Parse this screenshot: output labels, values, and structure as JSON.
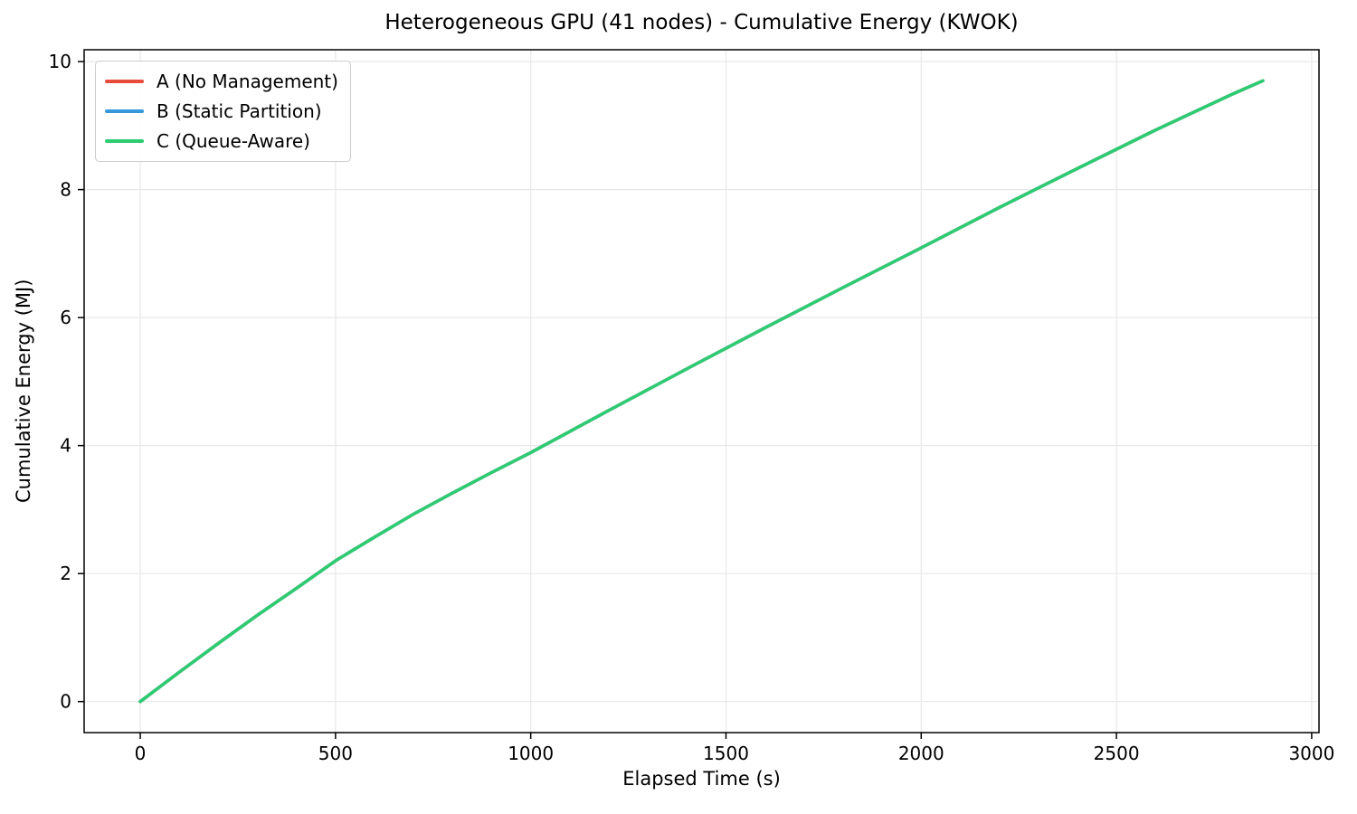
{
  "chart_data": {
    "type": "line",
    "title": "Heterogeneous GPU (41 nodes) - Cumulative Energy (KWOK)",
    "xlabel": "Elapsed Time (s)",
    "ylabel": "Cumulative Energy (MJ)",
    "xlim": [
      -143.75,
      3018.75
    ],
    "ylim": [
      -0.485,
      10.185
    ],
    "xticks": [
      0,
      500,
      1000,
      1500,
      2000,
      2500,
      3000
    ],
    "yticks": [
      0,
      2,
      4,
      6,
      8,
      10
    ],
    "grid": true,
    "legend_position": "upper left",
    "series_overlap": "All three series coincide along the same curve; C (Queue-Aware) is drawn on top so only green is visible",
    "x": [
      0,
      100,
      200,
      300,
      400,
      500,
      600,
      700,
      800,
      900,
      1000,
      1200,
      1400,
      1600,
      1800,
      2000,
      2200,
      2400,
      2600,
      2800,
      2875
    ],
    "series": [
      {
        "name": "A (No Management)",
        "color": "#e74c3c",
        "values": [
          0,
          0.46,
          0.91,
          1.35,
          1.77,
          2.2,
          2.57,
          2.93,
          3.26,
          3.58,
          3.89,
          4.55,
          5.2,
          5.84,
          6.47,
          7.09,
          7.72,
          8.33,
          8.93,
          9.5,
          9.7
        ]
      },
      {
        "name": "B (Static Partition)",
        "color": "#3498db",
        "values": [
          0,
          0.46,
          0.91,
          1.35,
          1.77,
          2.2,
          2.57,
          2.93,
          3.26,
          3.58,
          3.89,
          4.55,
          5.2,
          5.84,
          6.47,
          7.09,
          7.72,
          8.33,
          8.93,
          9.5,
          9.7
        ]
      },
      {
        "name": "C (Queue-Aware)",
        "color": "#2ecc71",
        "values": [
          0,
          0.46,
          0.91,
          1.35,
          1.77,
          2.2,
          2.57,
          2.93,
          3.26,
          3.58,
          3.89,
          4.55,
          5.2,
          5.84,
          6.47,
          7.09,
          7.72,
          8.33,
          8.93,
          9.5,
          9.7
        ]
      }
    ],
    "colors": {
      "background": "#ffffff",
      "grid": "#e8e8e8",
      "spine": "#000000",
      "tick_text": "#000000",
      "legend_border": "#cccccc"
    }
  }
}
